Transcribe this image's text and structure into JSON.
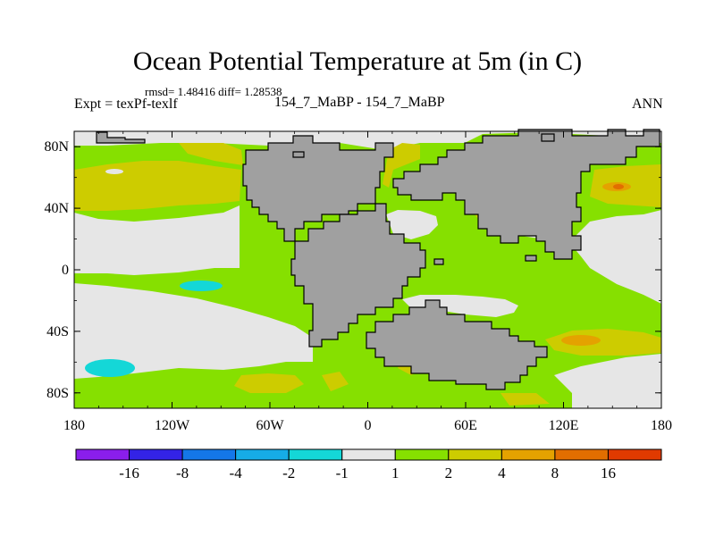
{
  "header": {
    "title": "Ocean Potential Temperature at 5m (in C)",
    "stats": "rmsd= 1.48416 diff= 1.28538",
    "expt": "Expt = texPf-texlf",
    "case": "154_7_MaBP - 154_7_MaBP",
    "season": "ANN"
  },
  "colors": {
    "land": "#a0a0a0",
    "near_zero": "#e6e6e6",
    "pos_1_2": "#86e000",
    "pos_2_4": "#cdcc00",
    "pos_4_8": "#e4a200",
    "pos_8_16": "#e26e00",
    "cyan": "#14d7d7"
  },
  "chart_data": {
    "type": "heatmap",
    "title": "Ocean Potential Temperature at 5m (in C)",
    "subtitle": "rmsd= 1.48416 diff= 1.28538",
    "xlabel": "",
    "ylabel": "",
    "x_ticks": [
      "180",
      "120W",
      "60W",
      "0",
      "60E",
      "120E",
      "180"
    ],
    "y_ticks": [
      "80N",
      "40N",
      "0",
      "40S",
      "80S"
    ],
    "xlim": [
      -180,
      180
    ],
    "ylim": [
      -90,
      90
    ],
    "colorbar": {
      "tick_labels": [
        "-16",
        "-8",
        "-4",
        "-2",
        "-1",
        "1",
        "2",
        "4",
        "8",
        "16"
      ],
      "colors": [
        "#8a1eeb",
        "#3323e6",
        "#1477e8",
        "#16ace6",
        "#14d7d7",
        "#e6e6e6",
        "#86e000",
        "#cdcc00",
        "#e4a200",
        "#e26e00",
        "#e03a00"
      ]
    }
  }
}
